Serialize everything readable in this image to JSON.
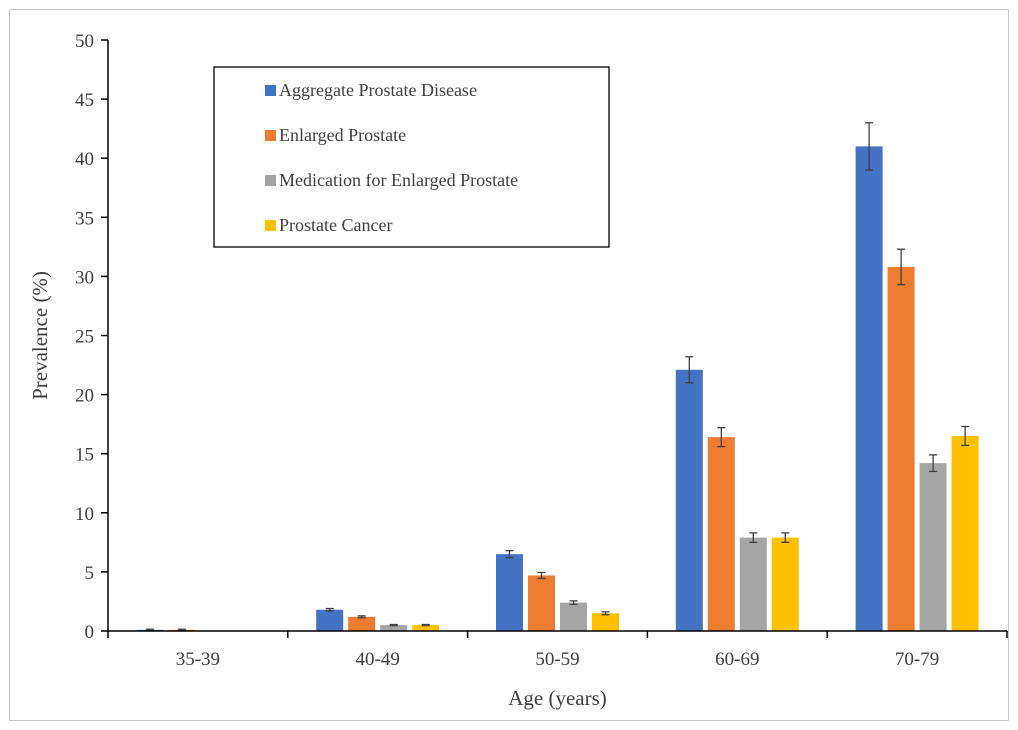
{
  "chart_data": {
    "type": "bar",
    "title": "",
    "xlabel": "Age (years)",
    "ylabel": "Prevalence (%)",
    "ylim": [
      0,
      50
    ],
    "yticks": [
      "0",
      "5",
      "10",
      "15",
      "20",
      "25",
      "30",
      "35",
      "40",
      "45",
      "50"
    ],
    "categories": [
      "35-39",
      "40-49",
      "50-59",
      "60-69",
      "70-79"
    ],
    "grid": false,
    "legend_position": "top-left",
    "series": [
      {
        "name": "Aggregate Prostate Disease",
        "color": "#4472C4",
        "values": [
          0.1,
          1.8,
          6.5,
          22.1,
          41.0
        ],
        "error": [
          0.05,
          0.1,
          0.3,
          1.1,
          2.0
        ]
      },
      {
        "name": "Enlarged Prostate",
        "color": "#ED7D31",
        "values": [
          0.1,
          1.2,
          4.7,
          16.4,
          30.8
        ],
        "error": [
          0.05,
          0.08,
          0.25,
          0.8,
          1.5
        ]
      },
      {
        "name": "Medication for Enlarged Prostate",
        "color": "#A5A5A5",
        "values": [
          0.0,
          0.5,
          2.4,
          7.9,
          14.2
        ],
        "error": [
          0.0,
          0.05,
          0.15,
          0.4,
          0.7
        ]
      },
      {
        "name": "Prostate Cancer",
        "color": "#FFC000",
        "values": [
          0.0,
          0.5,
          1.5,
          7.9,
          16.5
        ],
        "error": [
          0.0,
          0.05,
          0.12,
          0.4,
          0.8
        ]
      }
    ]
  }
}
